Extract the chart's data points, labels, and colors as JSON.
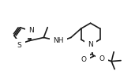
{
  "bg_color": "#ffffff",
  "line_color": "#1a1a1a",
  "line_width": 1.2,
  "font_size": 6.5,
  "figsize": [
    1.71,
    1.0
  ],
  "dpi": 100,
  "xlim": [
    0,
    171
  ],
  "ylim": [
    0,
    100
  ]
}
